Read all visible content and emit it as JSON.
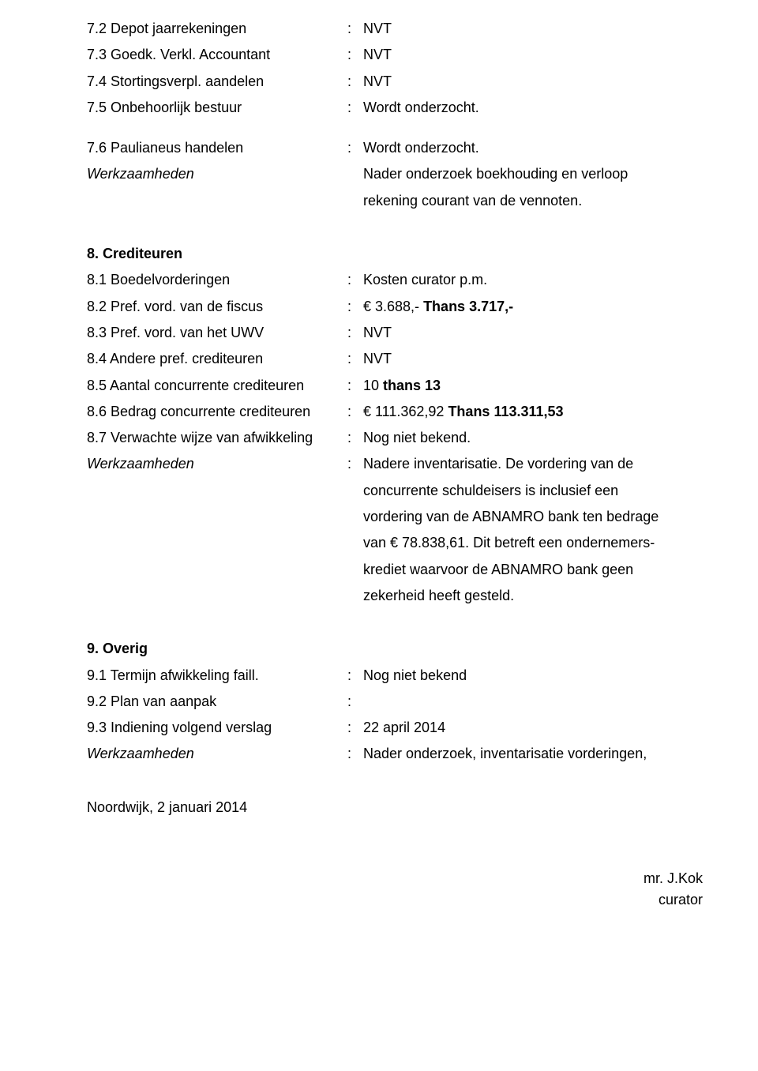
{
  "s7": {
    "r2": {
      "label": "7.2 Depot jaarrekeningen",
      "value": "NVT"
    },
    "r3": {
      "label": "7.3 Goedk. Verkl. Accountant",
      "value": "NVT"
    },
    "r4": {
      "label": "7.4 Stortingsverpl. aandelen",
      "value": "NVT"
    },
    "r5": {
      "label": "7.5 Onbehoorlijk bestuur",
      "value": "Wordt onderzocht."
    },
    "r6": {
      "label": "7.6 Paulianeus handelen",
      "value": "Wordt onderzocht."
    },
    "wz": {
      "label": "Werkzaamheden",
      "line1": "Nader onderzoek boekhouding en verloop",
      "line2": "rekening courant van de vennoten."
    }
  },
  "s8": {
    "heading": "8. Crediteuren",
    "r1": {
      "label": "8.1 Boedelvorderingen",
      "value": "Kosten curator p.m."
    },
    "r2": {
      "label": "8.2 Pref. vord. van de fiscus",
      "prefix": "€ 3.688,- ",
      "bold": "Thans 3.717,-"
    },
    "r3": {
      "label": "8.3 Pref. vord. van het UWV",
      "value": "NVT"
    },
    "r4": {
      "label": "8.4 Andere pref. crediteuren",
      "value": "NVT"
    },
    "r5": {
      "label": "8.5 Aantal concurrente crediteuren",
      "prefix": "10 ",
      "bold": "thans 13"
    },
    "r6": {
      "label": "8.6 Bedrag concurrente crediteuren",
      "prefix": "€ 111.362,92 ",
      "bold": "Thans 113.311,53"
    },
    "r7": {
      "label": "8.7 Verwachte wijze van afwikkeling",
      "value": "Nog niet bekend."
    },
    "wz": {
      "label": "Werkzaamheden",
      "line1": "Nadere inventarisatie. De vordering van de",
      "line2": "concurrente schuldeisers is inclusief een",
      "line3": "vordering van de ABNAMRO bank ten bedrage",
      "line4": "van € 78.838,61. Dit betreft een ondernemers-",
      "line5": "krediet waarvoor de ABNAMRO bank geen",
      "line6": "zekerheid heeft gesteld."
    }
  },
  "s9": {
    "heading": "9. Overig",
    "r1": {
      "label": "9.1 Termijn afwikkeling faill.",
      "value": "Nog niet bekend"
    },
    "r2": {
      "label": "9.2 Plan van aanpak",
      "value": ""
    },
    "r3": {
      "label": "9.3 Indiening volgend verslag",
      "value": "22 april 2014"
    },
    "wz": {
      "label": "Werkzaamheden",
      "value": "Nader onderzoek, inventarisatie vorderingen,"
    }
  },
  "footer": {
    "location": "Noordwijk, 2 januari 2014",
    "name": "mr. J.Kok",
    "role": "curator"
  }
}
